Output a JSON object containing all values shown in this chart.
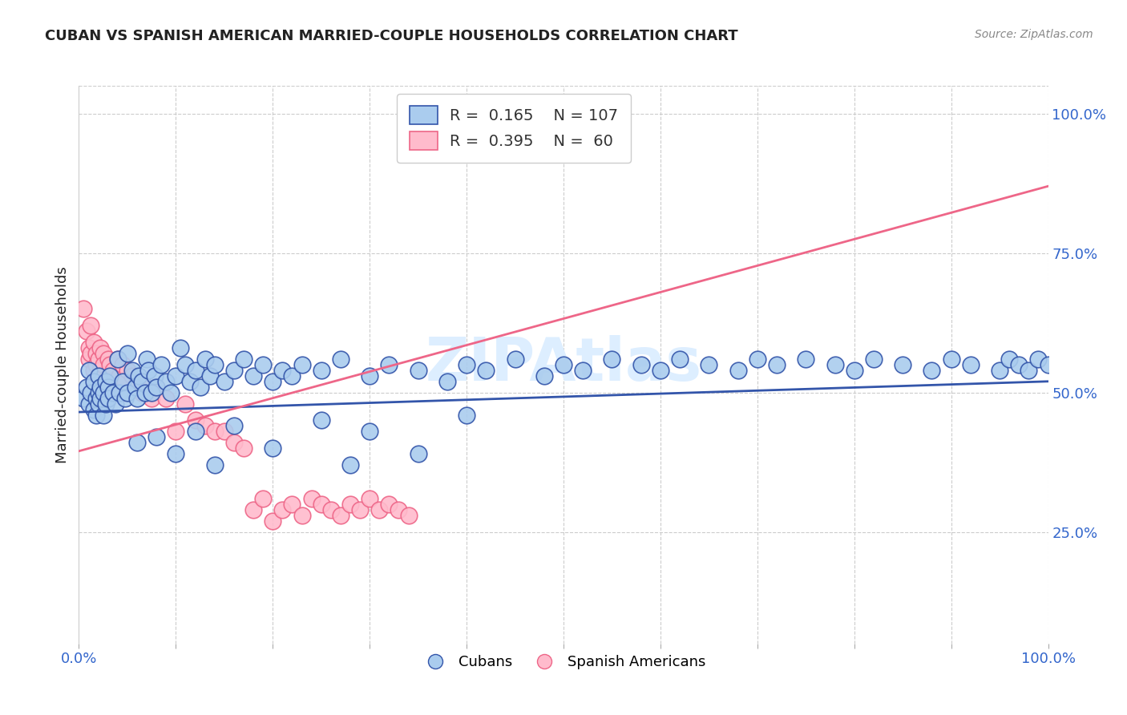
{
  "title": "CUBAN VS SPANISH AMERICAN MARRIED-COUPLE HOUSEHOLDS CORRELATION CHART",
  "source": "Source: ZipAtlas.com",
  "ylabel": "Married-couple Households",
  "right_yticks": [
    "100.0%",
    "75.0%",
    "50.0%",
    "25.0%"
  ],
  "right_ytick_vals": [
    1.0,
    0.75,
    0.5,
    0.25
  ],
  "watermark": "ZIPAtlas",
  "legend": {
    "blue_r": 0.165,
    "blue_n": 107,
    "pink_r": 0.395,
    "pink_n": 60
  },
  "blue_scatter": {
    "x": [
      0.005,
      0.008,
      0.01,
      0.01,
      0.012,
      0.015,
      0.015,
      0.018,
      0.018,
      0.02,
      0.02,
      0.02,
      0.022,
      0.022,
      0.025,
      0.025,
      0.028,
      0.028,
      0.03,
      0.03,
      0.032,
      0.035,
      0.038,
      0.04,
      0.042,
      0.045,
      0.048,
      0.05,
      0.05,
      0.055,
      0.058,
      0.06,
      0.062,
      0.065,
      0.068,
      0.07,
      0.072,
      0.075,
      0.078,
      0.08,
      0.085,
      0.09,
      0.095,
      0.1,
      0.105,
      0.11,
      0.115,
      0.12,
      0.125,
      0.13,
      0.135,
      0.14,
      0.15,
      0.16,
      0.17,
      0.18,
      0.19,
      0.2,
      0.21,
      0.22,
      0.23,
      0.25,
      0.27,
      0.3,
      0.32,
      0.35,
      0.38,
      0.4,
      0.42,
      0.45,
      0.48,
      0.5,
      0.52,
      0.55,
      0.58,
      0.6,
      0.62,
      0.65,
      0.68,
      0.7,
      0.72,
      0.75,
      0.78,
      0.8,
      0.82,
      0.85,
      0.88,
      0.9,
      0.92,
      0.95,
      0.96,
      0.97,
      0.98,
      0.99,
      1.0,
      0.1,
      0.14,
      0.2,
      0.28,
      0.35,
      0.06,
      0.08,
      0.12,
      0.16,
      0.25,
      0.3,
      0.4
    ],
    "y": [
      0.49,
      0.51,
      0.48,
      0.54,
      0.5,
      0.47,
      0.52,
      0.49,
      0.46,
      0.5,
      0.48,
      0.53,
      0.49,
      0.51,
      0.46,
      0.5,
      0.48,
      0.52,
      0.51,
      0.49,
      0.53,
      0.5,
      0.48,
      0.56,
      0.5,
      0.52,
      0.49,
      0.57,
      0.5,
      0.54,
      0.51,
      0.49,
      0.53,
      0.52,
      0.5,
      0.56,
      0.54,
      0.5,
      0.53,
      0.51,
      0.55,
      0.52,
      0.5,
      0.53,
      0.58,
      0.55,
      0.52,
      0.54,
      0.51,
      0.56,
      0.53,
      0.55,
      0.52,
      0.54,
      0.56,
      0.53,
      0.55,
      0.52,
      0.54,
      0.53,
      0.55,
      0.54,
      0.56,
      0.53,
      0.55,
      0.54,
      0.52,
      0.55,
      0.54,
      0.56,
      0.53,
      0.55,
      0.54,
      0.56,
      0.55,
      0.54,
      0.56,
      0.55,
      0.54,
      0.56,
      0.55,
      0.56,
      0.55,
      0.54,
      0.56,
      0.55,
      0.54,
      0.56,
      0.55,
      0.54,
      0.56,
      0.55,
      0.54,
      0.56,
      0.55,
      0.39,
      0.37,
      0.4,
      0.37,
      0.39,
      0.41,
      0.42,
      0.43,
      0.44,
      0.45,
      0.43,
      0.46
    ]
  },
  "pink_scatter": {
    "x": [
      0.005,
      0.008,
      0.01,
      0.01,
      0.012,
      0.012,
      0.015,
      0.015,
      0.018,
      0.018,
      0.018,
      0.02,
      0.02,
      0.022,
      0.022,
      0.025,
      0.025,
      0.028,
      0.03,
      0.03,
      0.032,
      0.035,
      0.038,
      0.04,
      0.042,
      0.045,
      0.048,
      0.05,
      0.055,
      0.06,
      0.065,
      0.07,
      0.075,
      0.08,
      0.09,
      0.1,
      0.11,
      0.12,
      0.13,
      0.14,
      0.15,
      0.16,
      0.17,
      0.18,
      0.19,
      0.2,
      0.21,
      0.22,
      0.23,
      0.24,
      0.25,
      0.26,
      0.27,
      0.28,
      0.29,
      0.3,
      0.31,
      0.32,
      0.33,
      0.34
    ],
    "y": [
      0.65,
      0.61,
      0.58,
      0.56,
      0.62,
      0.57,
      0.59,
      0.54,
      0.57,
      0.55,
      0.52,
      0.56,
      0.53,
      0.58,
      0.54,
      0.57,
      0.55,
      0.52,
      0.56,
      0.53,
      0.55,
      0.54,
      0.51,
      0.56,
      0.53,
      0.55,
      0.52,
      0.54,
      0.53,
      0.52,
      0.5,
      0.51,
      0.49,
      0.51,
      0.49,
      0.43,
      0.48,
      0.45,
      0.44,
      0.43,
      0.43,
      0.41,
      0.4,
      0.29,
      0.31,
      0.27,
      0.29,
      0.3,
      0.28,
      0.31,
      0.3,
      0.29,
      0.28,
      0.3,
      0.29,
      0.31,
      0.29,
      0.3,
      0.29,
      0.28
    ]
  },
  "blue_line": {
    "x0": 0.0,
    "x1": 1.0,
    "y0": 0.465,
    "y1": 0.52
  },
  "pink_line": {
    "x0": 0.0,
    "x1": 1.0,
    "y0": 0.395,
    "y1": 0.87
  },
  "blue_color": "#AACCEE",
  "pink_color": "#FFBBCC",
  "blue_line_color": "#3355AA",
  "pink_line_color": "#EE6688",
  "background_color": "#FFFFFF",
  "grid_color": "#CCCCCC",
  "title_color": "#222222",
  "source_color": "#888888",
  "right_axis_color": "#3366CC",
  "watermark_color": "#DDEEFF",
  "xlim": [
    0.0,
    1.0
  ],
  "ylim": [
    0.05,
    1.05
  ]
}
